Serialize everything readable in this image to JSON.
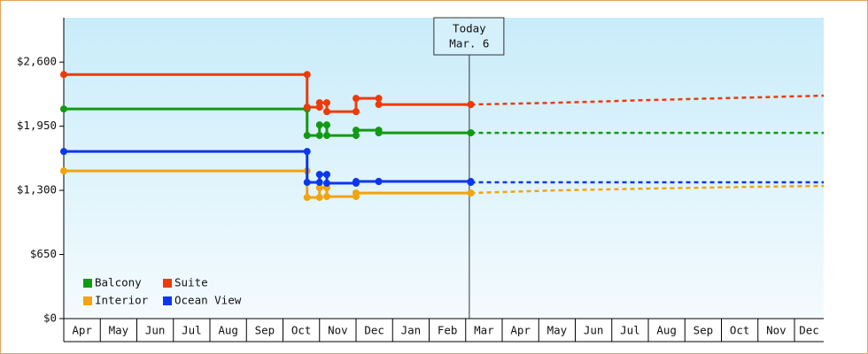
{
  "chart_data": {
    "type": "step-line",
    "categories": [
      "Apr",
      "May",
      "Jun",
      "Jul",
      "Aug",
      "Sep",
      "Oct",
      "Nov",
      "Dec",
      "Jan",
      "Feb",
      "Mar",
      "Apr",
      "May",
      "Jun",
      "Jul",
      "Aug",
      "Sep",
      "Oct",
      "Nov",
      "Dec"
    ],
    "xlim": [
      0,
      20.8
    ],
    "ylim": [
      0,
      3050
    ],
    "yticks": [
      {
        "value": 0,
        "label": "$0"
      },
      {
        "value": 650,
        "label": "$650"
      },
      {
        "value": 1300,
        "label": "$1,300"
      },
      {
        "value": 1950,
        "label": "$1,950"
      },
      {
        "value": 2600,
        "label": "$2,600"
      }
    ],
    "legend": "lower left",
    "annotation": {
      "x": 11.1,
      "lines": [
        "Today",
        "Mar. 6"
      ]
    },
    "series": [
      {
        "name": "Balcony",
        "color": "#129a12",
        "x": [
          0,
          6.66,
          7.0,
          7.2,
          8.0,
          8.62,
          11.14
        ],
        "values": [
          2125,
          1856,
          1963,
          1856,
          1910,
          1883,
          1883
        ],
        "forecast": {
          "x": [
            11.14,
            20.8
          ],
          "values": [
            1883,
            1883
          ]
        }
      },
      {
        "name": "Suite",
        "color": "#ee3a0a",
        "x": [
          0,
          6.66,
          7.0,
          7.2,
          8.0,
          8.62,
          11.14
        ],
        "values": [
          2474,
          2143,
          2188,
          2098,
          2232,
          2170,
          2170
        ],
        "forecast": {
          "x": [
            11.14,
            13.5,
            16.0,
            18.9,
            20.8
          ],
          "values": [
            2170,
            2188,
            2215,
            2242,
            2260
          ]
        }
      },
      {
        "name": "Interior",
        "color": "#f2a40e",
        "x": [
          0,
          6.66,
          7.0,
          7.2,
          8.0,
          11.14
        ],
        "values": [
          1497,
          1228,
          1327,
          1237,
          1273,
          1273
        ],
        "forecast": {
          "x": [
            11.14,
            13.5,
            16.0,
            18.9,
            20.8
          ],
          "values": [
            1273,
            1300,
            1318,
            1336,
            1345
          ]
        }
      },
      {
        "name": "Ocean View",
        "color": "#0a37ee",
        "x": [
          0,
          6.66,
          7.0,
          7.2,
          8.0,
          8.62,
          11.14
        ],
        "values": [
          1694,
          1381,
          1461,
          1372,
          1390,
          1390,
          1381
        ],
        "forecast": {
          "x": [
            11.14,
            20.8
          ],
          "values": [
            1381,
            1381
          ]
        }
      }
    ]
  }
}
